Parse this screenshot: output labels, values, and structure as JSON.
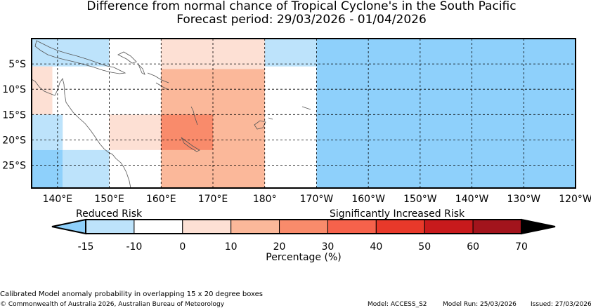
{
  "title": {
    "line1": "Difference from normal chance of Tropical Cyclone's in the South Pacific",
    "line2": "Forecast period: 29/03/2026 - 01/04/2026"
  },
  "map": {
    "lon_range": [
      135,
      240
    ],
    "lat_range": [
      -29.5,
      0
    ],
    "lon_ticks": [
      {
        "lon": 140,
        "label": "140°E"
      },
      {
        "lon": 150,
        "label": "150°E"
      },
      {
        "lon": 160,
        "label": "160°E"
      },
      {
        "lon": 170,
        "label": "170°E"
      },
      {
        "lon": 180,
        "label": "180°"
      },
      {
        "lon": 190,
        "label": "170°W"
      },
      {
        "lon": 200,
        "label": "160°W"
      },
      {
        "lon": 210,
        "label": "150°W"
      },
      {
        "lon": 220,
        "label": "140°W"
      },
      {
        "lon": 230,
        "label": "130°W"
      },
      {
        "lon": 240,
        "label": "120°W"
      }
    ],
    "lat_ticks": [
      {
        "lat": -5,
        "label": "5°S"
      },
      {
        "lat": -10,
        "label": "10°S"
      },
      {
        "lat": -15,
        "label": "15°S"
      },
      {
        "lat": -20,
        "label": "20°S"
      },
      {
        "lat": -25,
        "label": "25°S"
      }
    ],
    "cells": [
      {
        "lon0": 135,
        "lon1": 150,
        "lat0": 0,
        "lat1": -5.5,
        "value": -12
      },
      {
        "lon0": 135,
        "lon1": 139,
        "lat0": -5.5,
        "lat1": -15,
        "value": 0
      },
      {
        "lon0": 135,
        "lon1": 141,
        "lat0": -15,
        "lat1": -22,
        "value": -12
      },
      {
        "lon0": 135,
        "lon1": 141,
        "lat0": -22,
        "lat1": -29.5,
        "value": -18
      },
      {
        "lon0": 141,
        "lon1": 150,
        "lat0": -22,
        "lat1": -29.5,
        "value": -12
      },
      {
        "lon0": 150,
        "lon1": 160,
        "lat0": -15,
        "lat1": -22,
        "value": 5
      },
      {
        "lon0": 160,
        "lon1": 180,
        "lat0": 0,
        "lat1": -6,
        "value": 5
      },
      {
        "lon0": 160,
        "lon1": 180,
        "lat0": -6,
        "lat1": -29.5,
        "value": 15
      },
      {
        "lon0": 160,
        "lon1": 170,
        "lat0": -15,
        "lat1": -22,
        "value": 25
      },
      {
        "lon0": 180,
        "lon1": 190,
        "lat0": 0,
        "lat1": -5.5,
        "value": -12
      },
      {
        "lon0": 190,
        "lon1": 240,
        "lat0": 0,
        "lat1": -29.5,
        "value": -18
      }
    ]
  },
  "colorbar": {
    "reduced_label": "Reduced Risk",
    "increased_label": "Significantly Increased Risk",
    "tick_labels": [
      "-15",
      "-10",
      "0",
      "10",
      "20",
      "30",
      "40",
      "50",
      "60",
      "70"
    ],
    "colors": [
      "#bde3fb",
      "#ffffff",
      "#fde0d4",
      "#fbb89a",
      "#f98b6b",
      "#f6624b",
      "#e8392a",
      "#c81a1c",
      "#a2141c"
    ],
    "under_color": "#8ed0fb",
    "over_color": "#000000",
    "title": "Percentage (%)"
  },
  "footer": {
    "line1": "Calibrated Model anomaly probability in overlapping 15 x 20 degree boxes",
    "copyright": "© Commonwealth of Australia 2026, Australian Bureau of Meteorology",
    "model": "Model: ACCESS_S2",
    "model_run": "Model Run: 25/03/2026",
    "issued": "Issued: 27/03/2026"
  }
}
